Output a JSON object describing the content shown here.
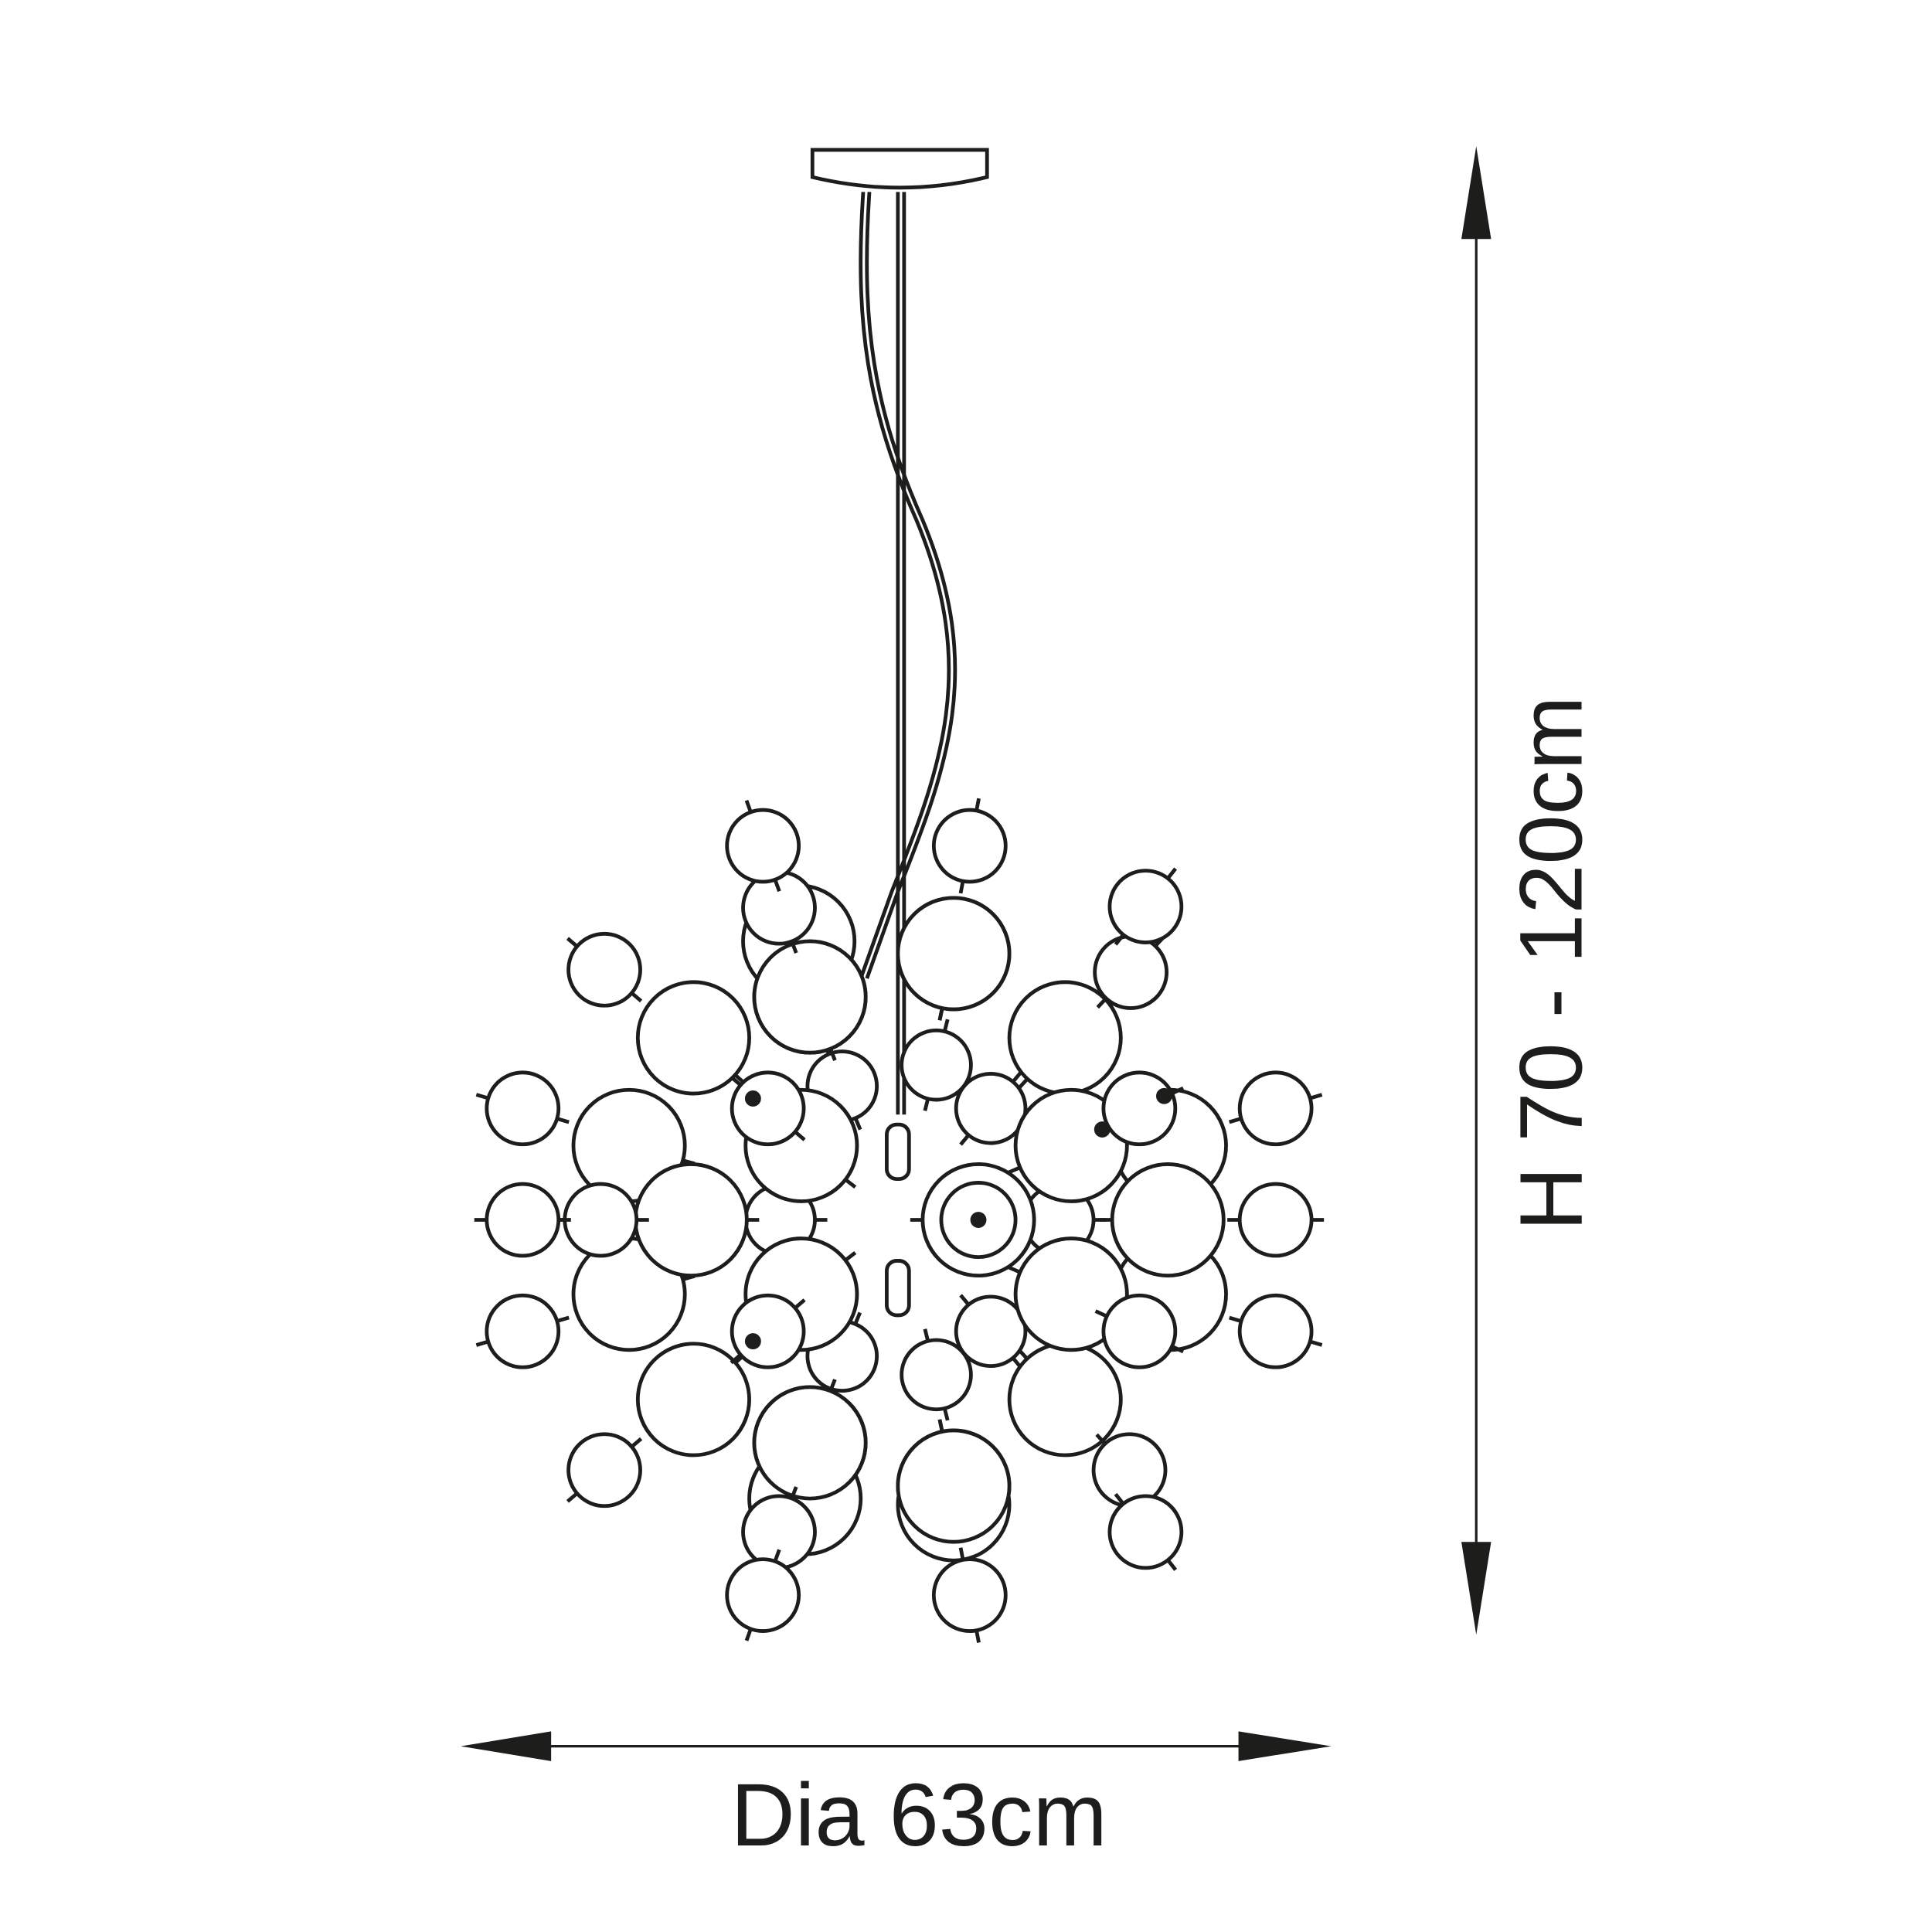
{
  "diagram": {
    "subject": "pendant light with glass spheres",
    "line_color": "#1d1d1b",
    "background": "#ffffff"
  },
  "dimensions": {
    "width_label": "Dia 63cm",
    "height_label": "H 70 - 120cm"
  }
}
